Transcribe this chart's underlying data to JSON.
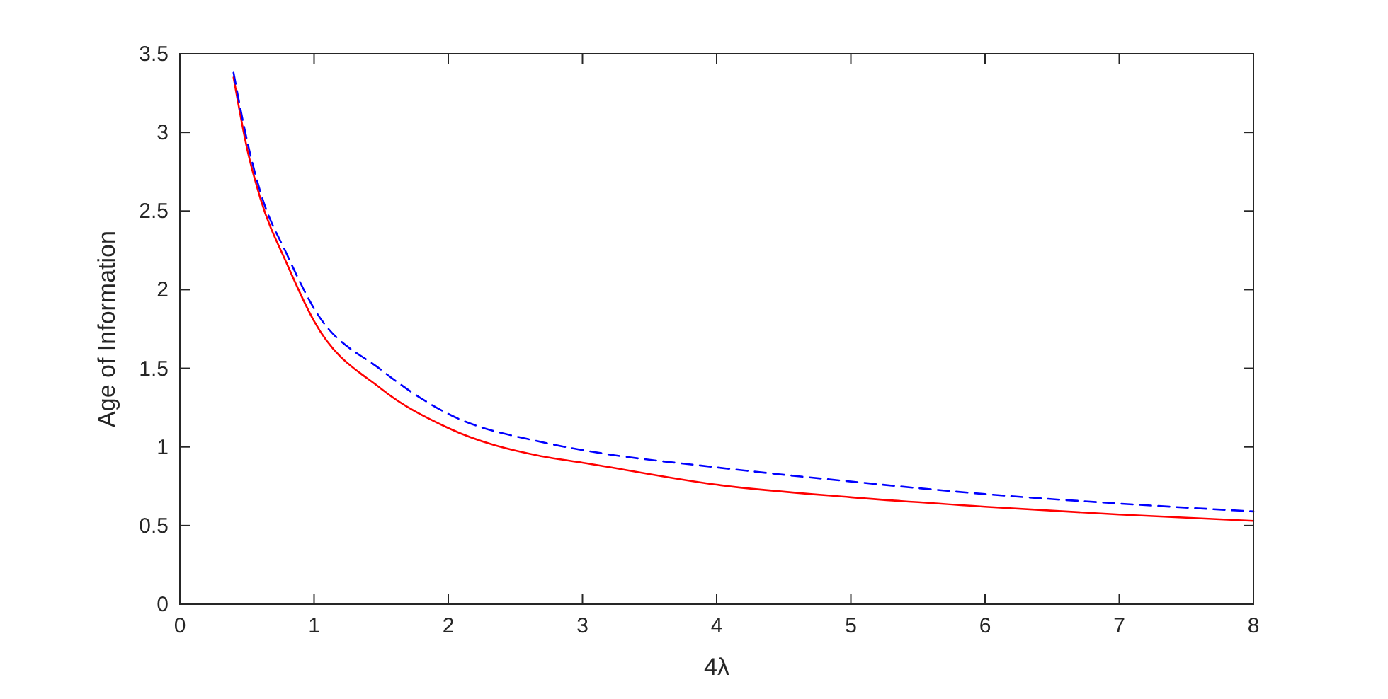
{
  "chart_data": {
    "type": "line",
    "xlabel": "4λ",
    "ylabel": "Age of Information",
    "x": [
      0.4,
      0.5,
      0.6,
      0.8,
      1,
      1.5,
      2,
      2.7,
      3,
      4,
      5,
      6,
      7,
      8
    ],
    "xlim": [
      0,
      8
    ],
    "ylim": [
      0,
      3.5
    ],
    "xticks": [
      0,
      1,
      2,
      3,
      4,
      5,
      6,
      7,
      8
    ],
    "yticks": [
      0,
      0.5,
      1,
      1.5,
      2,
      2.5,
      3,
      3.5
    ],
    "grid": false,
    "marker": "none",
    "series": [
      {
        "color": "#ff0000",
        "line_style": "solid",
        "values": [
          3.35,
          2.9,
          2.58,
          2.16,
          1.8,
          1.37,
          1.12,
          0.94,
          0.9,
          0.76,
          0.68,
          0.62,
          0.57,
          0.53
        ]
      },
      {
        "color": "#0000ff",
        "line_style": "dashed",
        "values": [
          3.38,
          2.95,
          2.62,
          2.22,
          1.88,
          1.49,
          1.21,
          1.03,
          0.98,
          0.87,
          0.78,
          0.7,
          0.64,
          0.59
        ]
      }
    ]
  }
}
